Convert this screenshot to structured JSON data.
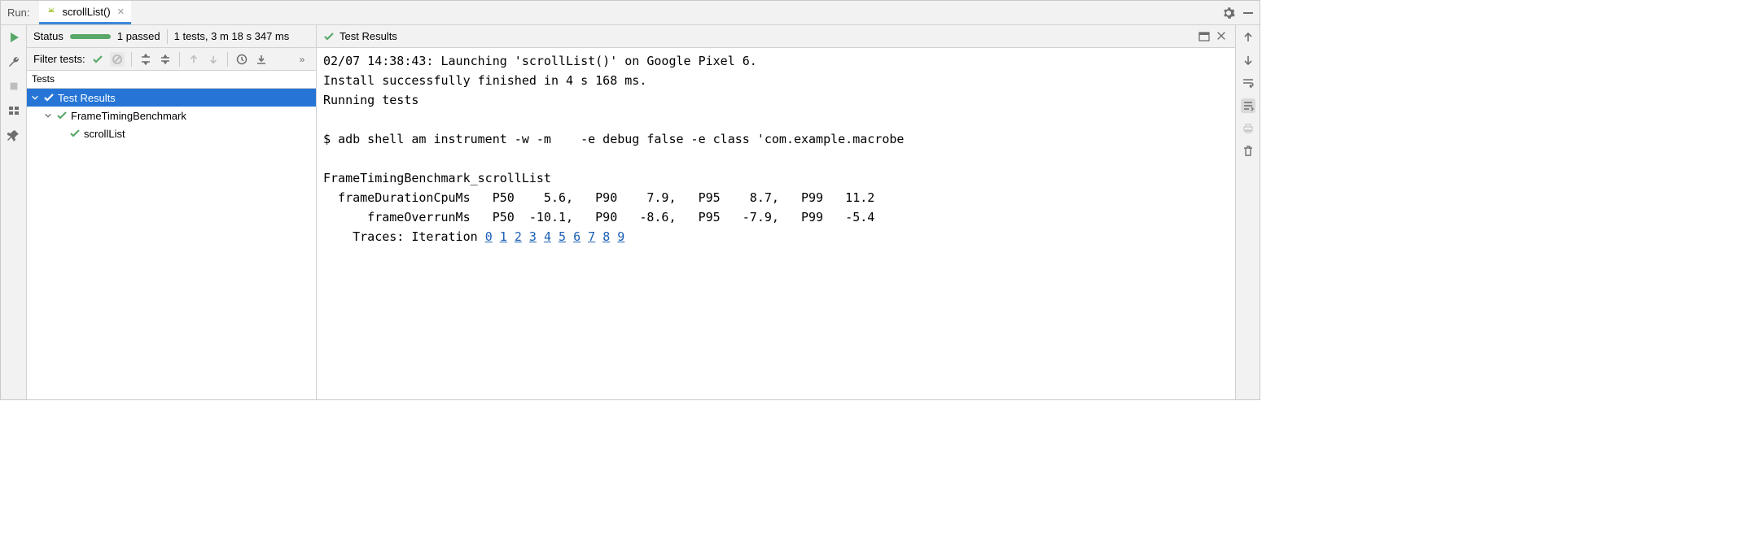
{
  "header": {
    "run_label": "Run:",
    "tab_label": "scrollList()"
  },
  "status": {
    "label": "Status",
    "passed": "1 passed",
    "summary": "1 tests, 3 m 18 s 347 ms"
  },
  "filter": {
    "label": "Filter tests:"
  },
  "tests_header": "Tests",
  "tree": {
    "root": {
      "label": "Test Results"
    },
    "node1": {
      "label": "FrameTimingBenchmark"
    },
    "leaf1": {
      "label": "scrollList"
    }
  },
  "console_header": {
    "title": "Test Results"
  },
  "console": {
    "line1": "02/07 14:38:43: Launching 'scrollList()' on Google Pixel 6.",
    "line2": "Install successfully finished in 4 s 168 ms.",
    "line3": "Running tests",
    "line4": "",
    "line5": "$ adb shell am instrument -w -m    -e debug false -e class 'com.example.macrobe",
    "line6": "",
    "line7": "FrameTimingBenchmark_scrollList",
    "line8": "  frameDurationCpuMs   P50    5.6,   P90    7.9,   P95    8.7,   P99   11.2",
    "line9": "      frameOverrunMs   P50  -10.1,   P90   -8.6,   P95   -7.9,   P99   -5.4",
    "traces_prefix": "    Traces: Iteration ",
    "iterations": [
      "0",
      "1",
      "2",
      "3",
      "4",
      "5",
      "6",
      "7",
      "8",
      "9"
    ]
  },
  "colors": {
    "accent": "#2675d6",
    "pass": "#59a869",
    "link": "#1a5fb4",
    "panel_bg": "#f2f2f2",
    "border": "#d1d1d1"
  }
}
